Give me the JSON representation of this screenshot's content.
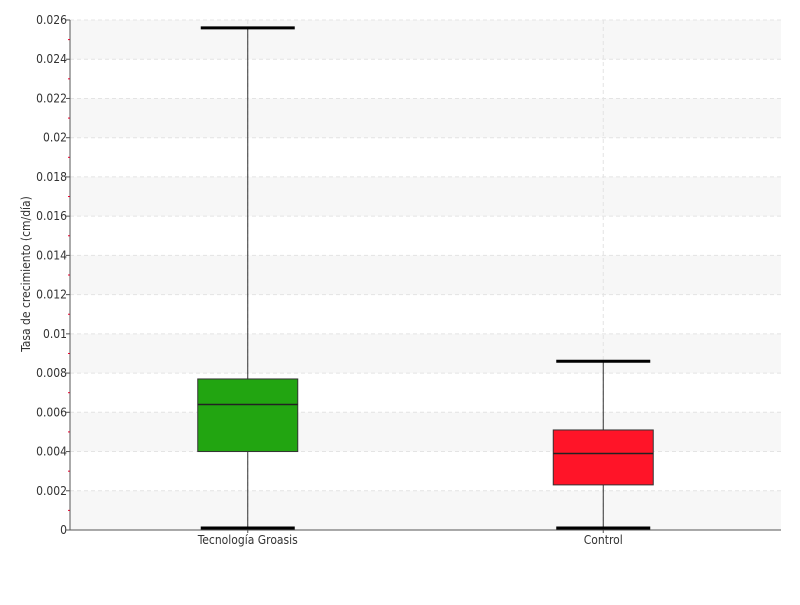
{
  "chart_data": {
    "type": "box",
    "title": "",
    "xlabel": "",
    "ylabel": "Tasa de crecimiento (cm/día)",
    "ylim": [
      0,
      0.026
    ],
    "yticks": [
      "0",
      "0.002",
      "0.004",
      "0.006",
      "0.008",
      "0.01",
      "0.012",
      "0.014",
      "0.016",
      "0.018",
      "0.02",
      "0.022",
      "0.024",
      "0.026"
    ],
    "grid": true,
    "categories": [
      "Tecnología Groasis",
      "Control"
    ],
    "boxes": [
      {
        "category": "Tecnología Groasis",
        "min": 0.0001,
        "q1": 0.004,
        "median": 0.0064,
        "q3": 0.0077,
        "max": 0.0256,
        "color": "#22a511"
      },
      {
        "category": "Control",
        "min": 0.0001,
        "q1": 0.0023,
        "median": 0.0039,
        "q3": 0.0051,
        "max": 0.0086,
        "color": "#ff1428"
      }
    ]
  }
}
